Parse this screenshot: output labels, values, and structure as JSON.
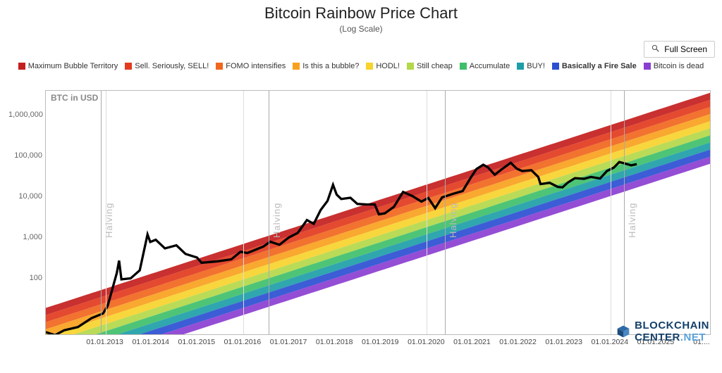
{
  "title": "Bitcoin Rainbow Price Chart",
  "subtitle": "(Log Scale)",
  "fullscreen_label": "Full Screen",
  "y_axis_label": "BTC in USD",
  "watermark": {
    "line1": "BLOCKCHAIN",
    "line2": "CENTER",
    "suffix": ".NET"
  },
  "chart": {
    "type": "log-band-line",
    "x_domain_years": [
      2011.7,
      2026.2
    ],
    "y_log_domain": [
      0.6,
      6.6
    ],
    "y_ticks": [
      {
        "value": 100,
        "label": "100"
      },
      {
        "value": 1000,
        "label": "1,000"
      },
      {
        "value": 10000,
        "label": "10,000"
      },
      {
        "value": 100000,
        "label": "100,000"
      },
      {
        "value": 1000000,
        "label": "1,000,000"
      }
    ],
    "x_ticks": [
      "01.01.2013",
      "01.01.2014",
      "01.01.2015",
      "01.01.2016",
      "01.01.2017",
      "01.01.2018",
      "01.01.2019",
      "01.01.2020",
      "01.01.2021",
      "01.01.2022",
      "01.01.2023",
      "01.01.2024",
      "01.01.2025",
      "01...."
    ],
    "x_tick_years": [
      2013,
      2014,
      2015,
      2016,
      2017,
      2018,
      2019,
      2020,
      2021,
      2022,
      2023,
      2024,
      2025,
      2026
    ],
    "grid_v_years": [
      2013,
      2016,
      2020,
      2024
    ],
    "halvings": [
      {
        "year": 2012.9,
        "label": "Halving"
      },
      {
        "year": 2016.55,
        "label": "Halving"
      },
      {
        "year": 2020.4,
        "label": "Halving"
      },
      {
        "year": 2024.3,
        "label": "Halving"
      }
    ],
    "bands": [
      {
        "name": "Maximum Bubble Territory",
        "color": "#c41e1e"
      },
      {
        "name": "Sell. Seriously, SELL!",
        "color": "#e23b1e"
      },
      {
        "name": "FOMO intensifies",
        "color": "#f1661e"
      },
      {
        "name": "Is this a bubble?",
        "color": "#f9a11e"
      },
      {
        "name": "HODL!",
        "color": "#f7d32c"
      },
      {
        "name": "Still cheap",
        "color": "#b3d84a"
      },
      {
        "name": "Accumulate",
        "color": "#3fbf6b"
      },
      {
        "name": "BUY!",
        "color": "#1e9ea8"
      },
      {
        "name": "Basically a Fire Sale",
        "color": "#2b4fd1",
        "bold": true
      },
      {
        "name": "Bitcoin is dead",
        "color": "#8b3fd1"
      }
    ],
    "band_log_top_at": {
      "start_year": 2011.7,
      "end_year": 2026.2,
      "start_log": 1.25,
      "end_log": 6.55
    },
    "band_log_thickness": 0.175,
    "price_series": [
      [
        2011.7,
        4.5
      ],
      [
        2011.9,
        3.8
      ],
      [
        2012.1,
        5.0
      ],
      [
        2012.4,
        6.0
      ],
      [
        2012.7,
        10
      ],
      [
        2012.95,
        13
      ],
      [
        2013.05,
        20
      ],
      [
        2013.25,
        130
      ],
      [
        2013.3,
        260
      ],
      [
        2013.35,
        90
      ],
      [
        2013.55,
        95
      ],
      [
        2013.75,
        150
      ],
      [
        2013.92,
        1150
      ],
      [
        2013.98,
        750
      ],
      [
        2014.1,
        850
      ],
      [
        2014.3,
        520
      ],
      [
        2014.55,
        620
      ],
      [
        2014.75,
        380
      ],
      [
        2015.0,
        310
      ],
      [
        2015.1,
        230
      ],
      [
        2015.45,
        250
      ],
      [
        2015.75,
        280
      ],
      [
        2015.95,
        430
      ],
      [
        2016.1,
        400
      ],
      [
        2016.45,
        580
      ],
      [
        2016.6,
        760
      ],
      [
        2016.8,
        640
      ],
      [
        2017.0,
        960
      ],
      [
        2017.2,
        1250
      ],
      [
        2017.4,
        2600
      ],
      [
        2017.55,
        2100
      ],
      [
        2017.7,
        4600
      ],
      [
        2017.85,
        7700
      ],
      [
        2017.97,
        19200
      ],
      [
        2018.05,
        11000
      ],
      [
        2018.15,
        8600
      ],
      [
        2018.35,
        9200
      ],
      [
        2018.5,
        6500
      ],
      [
        2018.7,
        6300
      ],
      [
        2018.88,
        6300
      ],
      [
        2018.97,
        3600
      ],
      [
        2019.1,
        3800
      ],
      [
        2019.3,
        5500
      ],
      [
        2019.5,
        12800
      ],
      [
        2019.7,
        10200
      ],
      [
        2019.9,
        7400
      ],
      [
        2020.05,
        9100
      ],
      [
        2020.2,
        5100
      ],
      [
        2020.35,
        9400
      ],
      [
        2020.6,
        11600
      ],
      [
        2020.8,
        13500
      ],
      [
        2020.97,
        28000
      ],
      [
        2021.1,
        47000
      ],
      [
        2021.25,
        60000
      ],
      [
        2021.35,
        52000
      ],
      [
        2021.5,
        34000
      ],
      [
        2021.65,
        46000
      ],
      [
        2021.85,
        67000
      ],
      [
        2021.98,
        48000
      ],
      [
        2022.1,
        42000
      ],
      [
        2022.3,
        44000
      ],
      [
        2022.45,
        30000
      ],
      [
        2022.5,
        20000
      ],
      [
        2022.7,
        21500
      ],
      [
        2022.88,
        17000
      ],
      [
        2022.98,
        16600
      ],
      [
        2023.1,
        22000
      ],
      [
        2023.25,
        28000
      ],
      [
        2023.45,
        27000
      ],
      [
        2023.6,
        30000
      ],
      [
        2023.8,
        27500
      ],
      [
        2023.95,
        42000
      ],
      [
        2024.1,
        51000
      ],
      [
        2024.22,
        70000
      ],
      [
        2024.35,
        64000
      ],
      [
        2024.48,
        58000
      ],
      [
        2024.6,
        62000
      ]
    ],
    "price_stroke": "#000000",
    "price_stroke_width": 1.1,
    "grid_color": "#dddddd",
    "border_color": "#bbbbbb",
    "background": "#ffffff"
  }
}
